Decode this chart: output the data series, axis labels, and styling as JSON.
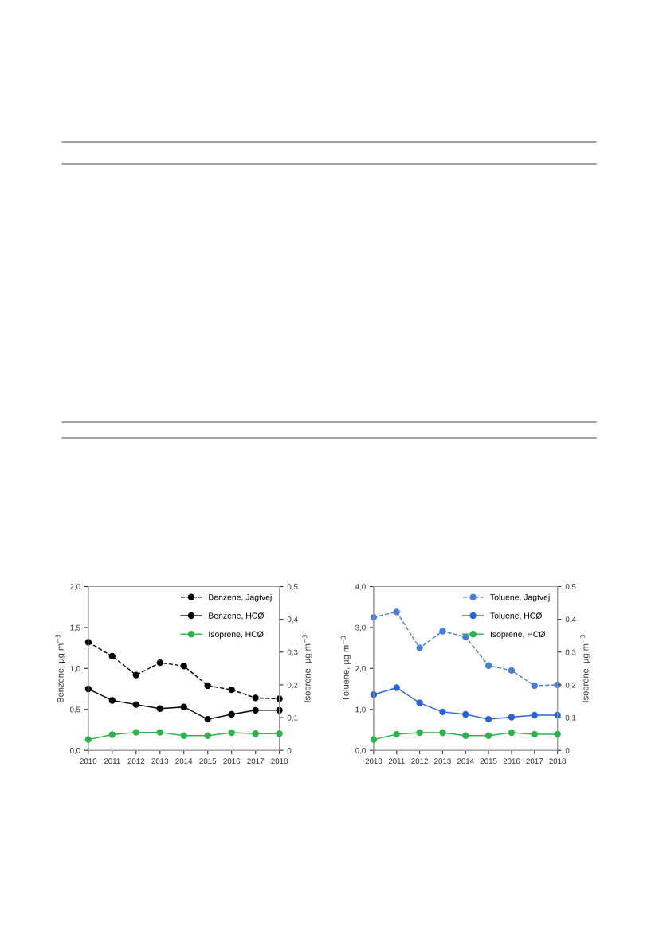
{
  "chart_data": [
    {
      "type": "line",
      "categories": [
        "2010",
        "2011",
        "2012",
        "2013",
        "2014",
        "2015",
        "2016",
        "2017",
        "2018"
      ],
      "ylabel": "Benzene, µg m$^{−3}$",
      "y2label": "Isoprene, µg m$^{−3}$",
      "ylim": [
        0,
        2.0
      ],
      "yticks": [
        {
          "value": 0,
          "label": "0,0"
        },
        {
          "value": 0.5,
          "label": "0,5"
        },
        {
          "value": 1.0,
          "label": "1,0"
        },
        {
          "value": 1.5,
          "label": "1,5"
        },
        {
          "value": 2.0,
          "label": "2,0"
        }
      ],
      "y2lim": [
        0,
        0.5
      ],
      "y2ticks": [
        0,
        {
          "value": 0.1,
          "label": "0,1"
        },
        {
          "value": 0.2,
          "label": "0,2"
        },
        {
          "value": 0.3,
          "label": "0,3"
        },
        {
          "value": 0.4,
          "label": "0,4"
        },
        {
          "value": 0.5,
          "label": "0,5"
        }
      ],
      "grid": false,
      "legend": "top right",
      "marker": "circle",
      "series": [
        {
          "name": "Benzene, Jagtvej",
          "color": "#000000",
          "line_style": "dashed",
          "values": [
            1.32,
            1.15,
            0.92,
            1.07,
            1.03,
            0.79,
            0.74,
            0.64,
            0.63
          ]
        },
        {
          "name": "Benzene, HCØ",
          "color": "#000000",
          "line_style": "solid",
          "values": [
            0.75,
            0.61,
            0.56,
            0.51,
            0.53,
            0.38,
            0.44,
            0.49,
            0.49
          ]
        },
        {
          "name": "Isoprene, HCØ",
          "color": "#2db34a",
          "line_style": "solid",
          "axis": "y2",
          "values": [
            0.033,
            0.048,
            0.055,
            0.055,
            0.045,
            0.045,
            0.054,
            0.051,
            0.051
          ]
        }
      ]
    },
    {
      "type": "line",
      "categories": [
        "2010",
        "2011",
        "2012",
        "2013",
        "2014",
        "2015",
        "2016",
        "2017",
        "2018"
      ],
      "ylabel": "Toluene, µg m$^{−3}$",
      "y2label": "Isoprene, µg m$^{−3}$",
      "ylim": [
        0,
        4.0
      ],
      "yticks": [
        {
          "value": 0,
          "label": "0,0"
        },
        {
          "value": 1.0,
          "label": "1,0"
        },
        {
          "value": 2.0,
          "label": "2,0"
        },
        {
          "value": 3.0,
          "label": "3,0"
        },
        {
          "value": 4.0,
          "label": "4,0"
        }
      ],
      "y2lim": [
        0,
        0.5
      ],
      "y2ticks": [
        0,
        {
          "value": 0.1,
          "label": "0,1"
        },
        {
          "value": 0.2,
          "label": "0,2"
        },
        {
          "value": 0.3,
          "label": "0,3"
        },
        {
          "value": 0.4,
          "label": "0,4"
        },
        {
          "value": 0.5,
          "label": "0,5"
        }
      ],
      "grid": false,
      "legend": "top right",
      "marker": "circle",
      "series": [
        {
          "name": "Toluene, Jagtvej",
          "color": "#4a7fd6",
          "line_style": "dashed",
          "values": [
            3.25,
            3.38,
            2.5,
            2.91,
            2.77,
            2.07,
            1.95,
            1.58,
            1.6
          ]
        },
        {
          "name": "Toluene, HCØ",
          "color": "#2a62d8",
          "line_style": "solid",
          "values": [
            1.36,
            1.53,
            1.16,
            0.94,
            0.88,
            0.76,
            0.81,
            0.86,
            0.86
          ]
        },
        {
          "name": "Isoprene, HCØ",
          "color": "#2db34a",
          "line_style": "solid",
          "axis": "y2",
          "values": [
            0.033,
            0.049,
            0.054,
            0.054,
            0.045,
            0.045,
            0.054,
            0.049,
            0.049
          ]
        }
      ]
    }
  ]
}
